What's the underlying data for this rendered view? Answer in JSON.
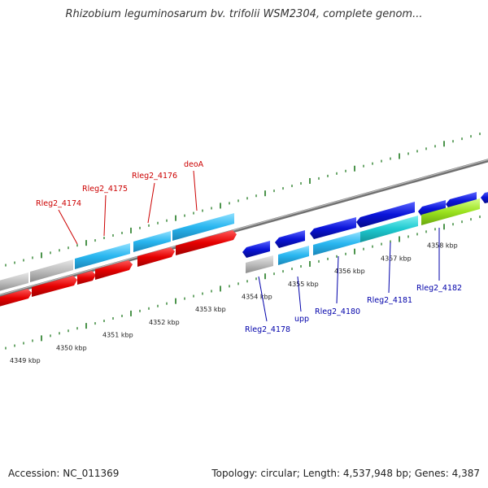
{
  "title": "Rhizobium leguminosarum bv. trifolii WSM2304, complete genom...",
  "footer": {
    "accession": "Accession: NC_011369",
    "summary": "Topology: circular; Length: 4,537,948 bp; Genes: 4,387"
  },
  "ticks": [
    {
      "kb": 4349,
      "label": "4349 kbp"
    },
    {
      "kb": 4350,
      "label": "4350 kbp"
    },
    {
      "kb": 4351,
      "label": "4351 kbp"
    },
    {
      "kb": 4352,
      "label": "4352 kbp"
    },
    {
      "kb": 4353,
      "label": "4353 kbp"
    },
    {
      "kb": 4354,
      "label": "4354 kbp"
    },
    {
      "kb": 4355,
      "label": "4355 kbp"
    },
    {
      "kb": 4356,
      "label": "4356 kbp"
    },
    {
      "kb": 4357,
      "label": "4357 kbp"
    },
    {
      "kb": 4358,
      "label": "4358 kbp"
    }
  ],
  "labels_top": [
    {
      "text": "Rleg2_4174",
      "color": "#cc0000"
    },
    {
      "text": "Rleg2_4175",
      "color": "#cc0000"
    },
    {
      "text": "Rleg2_4176",
      "color": "#cc0000"
    },
    {
      "text": "deoA",
      "color": "#cc0000"
    }
  ],
  "labels_bottom": [
    {
      "text": "Rleg2_4178",
      "color": "#0000aa"
    },
    {
      "text": "upp",
      "color": "#0000aa"
    },
    {
      "text": "Rleg2_4180",
      "color": "#0000aa"
    },
    {
      "text": "Rleg2_4181",
      "color": "#0000aa"
    },
    {
      "text": "Rleg2_4182",
      "color": "#0000aa"
    }
  ],
  "colors": {
    "forward_cds": "#e50000",
    "reverse_cds": "#0a14d9",
    "gene_light": "#29b6f0",
    "gene_grey": "#bdbdbd",
    "gene_teal": "#1ec9d0",
    "gene_lime": "#9be21e",
    "backbone": "#8a8a8a",
    "ticks": "#1f7a1f"
  }
}
